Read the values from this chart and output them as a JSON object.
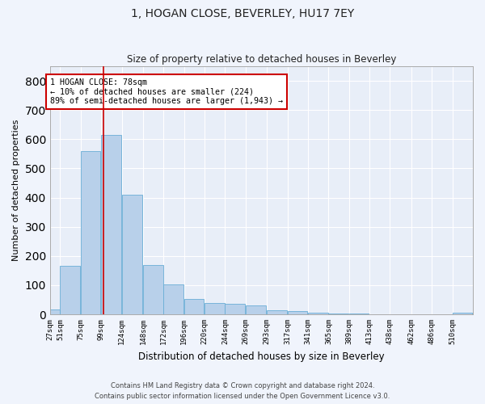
{
  "title": "1, HOGAN CLOSE, BEVERLEY, HU17 7EY",
  "subtitle": "Size of property relative to detached houses in Beverley",
  "xlabel": "Distribution of detached houses by size in Beverley",
  "ylabel": "Number of detached properties",
  "bar_color": "#b8d0ea",
  "bar_edge_color": "#6aaed6",
  "background_color": "#e8eef8",
  "grid_color": "#ffffff",
  "annotation_box_color": "#cc0000",
  "annotation_line_color": "#cc0000",
  "property_line_x": 78,
  "annotation_text": "1 HOGAN CLOSE: 78sqm\n← 10% of detached houses are smaller (224)\n89% of semi-detached houses are larger (1,943) →",
  "footer": "Contains HM Land Registry data © Crown copyright and database right 2024.\nContains public sector information licensed under the Open Government Licence v3.0.",
  "categories": [
    "27sqm",
    "51sqm",
    "75sqm",
    "99sqm",
    "124sqm",
    "148sqm",
    "172sqm",
    "196sqm",
    "220sqm",
    "244sqm",
    "269sqm",
    "293sqm",
    "317sqm",
    "341sqm",
    "365sqm",
    "389sqm",
    "413sqm",
    "438sqm",
    "462sqm",
    "486sqm",
    "510sqm"
  ],
  "bin_edges": [
    15,
    27,
    51,
    75,
    99,
    124,
    148,
    172,
    196,
    220,
    244,
    269,
    293,
    317,
    341,
    365,
    389,
    413,
    438,
    462,
    486,
    510
  ],
  "values": [
    17,
    165,
    560,
    615,
    410,
    170,
    102,
    52,
    40,
    35,
    30,
    13,
    10,
    6,
    2,
    2,
    1,
    0,
    0,
    0,
    7
  ],
  "ylim": [
    0,
    850
  ],
  "yticks": [
    0,
    100,
    200,
    300,
    400,
    500,
    600,
    700,
    800
  ]
}
